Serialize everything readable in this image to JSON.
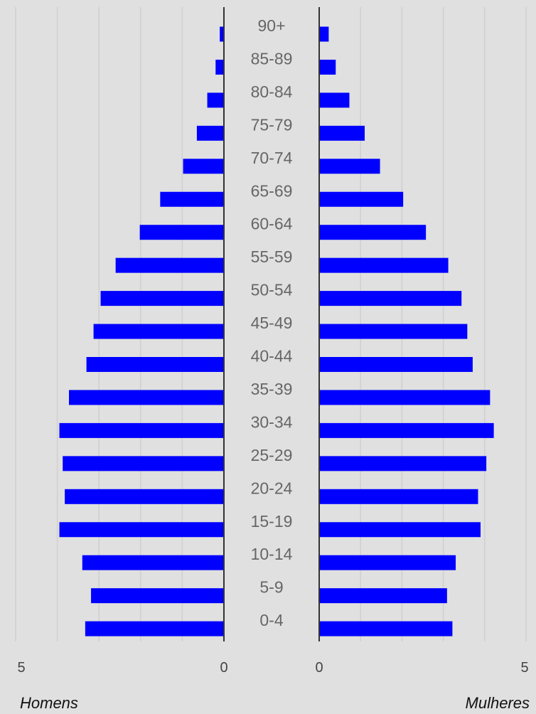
{
  "chart_data": {
    "type": "bar",
    "orientation": "horizontal",
    "layout": "population-pyramid",
    "categories": [
      "90+",
      "85-89",
      "80-84",
      "75-79",
      "70-74",
      "65-69",
      "60-64",
      "55-59",
      "50-54",
      "45-49",
      "40-44",
      "35-39",
      "30-34",
      "25-29",
      "20-24",
      "15-19",
      "10-14",
      "5-9",
      "0-4"
    ],
    "series": [
      {
        "name": "Homens",
        "side": "left",
        "values": [
          0.1,
          0.2,
          0.4,
          0.65,
          0.98,
          1.53,
          2.02,
          2.6,
          2.96,
          3.13,
          3.3,
          3.72,
          3.95,
          3.87,
          3.82,
          3.95,
          3.4,
          3.19,
          3.33
        ]
      },
      {
        "name": "Mulheres",
        "side": "right",
        "values": [
          0.23,
          0.4,
          0.73,
          1.1,
          1.47,
          2.03,
          2.58,
          3.12,
          3.44,
          3.58,
          3.71,
          4.13,
          4.22,
          4.04,
          3.84,
          3.9,
          3.3,
          3.09,
          3.22
        ]
      }
    ],
    "xlim": [
      0,
      5
    ],
    "x_tick_values": [
      5,
      0
    ],
    "x_tick_labels": {
      "left": [
        "5",
        "0"
      ],
      "right": [
        "0",
        "5"
      ]
    },
    "labels": {
      "left": "Homens",
      "right": "Mulheres"
    },
    "grid": true,
    "colors": {
      "bar": "#0000ff",
      "background": "#e0e0e0",
      "grid": "#cfcfcf",
      "axis": "#333333"
    }
  }
}
